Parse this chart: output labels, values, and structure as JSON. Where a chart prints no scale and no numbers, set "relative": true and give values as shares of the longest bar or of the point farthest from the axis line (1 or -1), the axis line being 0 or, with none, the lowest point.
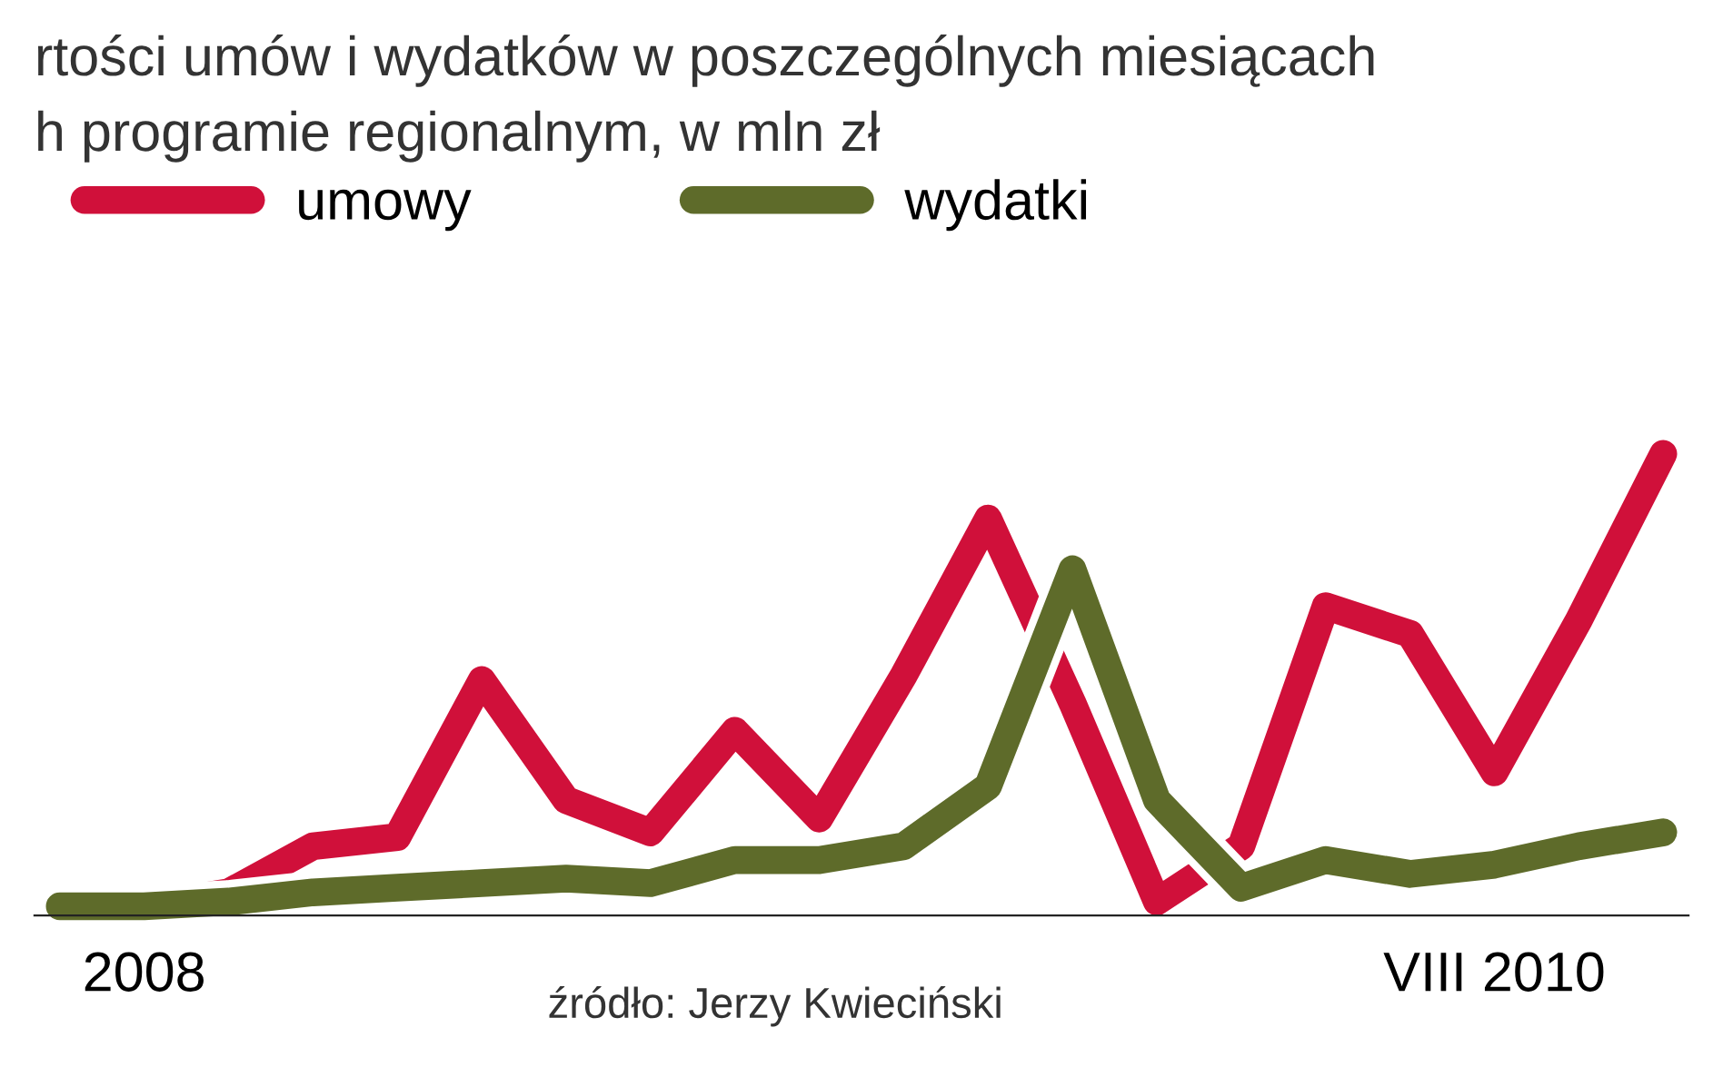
{
  "chart_data": {
    "type": "line",
    "title": "rtości umów i wydatków w poszczególnych miesiącach",
    "subtitle": "h programie regionalnym, w mln zł",
    "relative": true,
    "legend": "top left",
    "grid": false,
    "categories": [
      null,
      "2008",
      null,
      null,
      null,
      null,
      null,
      null,
      null,
      null,
      null,
      null,
      null,
      null,
      null,
      null,
      null,
      "VIII 2010",
      null,
      null
    ],
    "series": [
      {
        "name": "umowy",
        "color": "#d0103a",
        "values": [
          0.02,
          0.02,
          0.05,
          0.15,
          0.17,
          0.51,
          0.25,
          0.18,
          0.4,
          0.21,
          0.52,
          0.86,
          0.46,
          0.03,
          0.15,
          0.67,
          0.61,
          0.31,
          0.64,
          1.0
        ]
      },
      {
        "name": "wydatki",
        "color": "#5e6b2a",
        "values": [
          0.02,
          0.02,
          0.03,
          0.05,
          0.06,
          0.07,
          0.08,
          0.07,
          0.12,
          0.12,
          0.15,
          0.28,
          0.75,
          0.25,
          0.06,
          0.12,
          0.09,
          0.11,
          0.15,
          0.18
        ]
      }
    ],
    "annotations": [
      "źródło: Jerzy Kwieciński"
    ]
  }
}
